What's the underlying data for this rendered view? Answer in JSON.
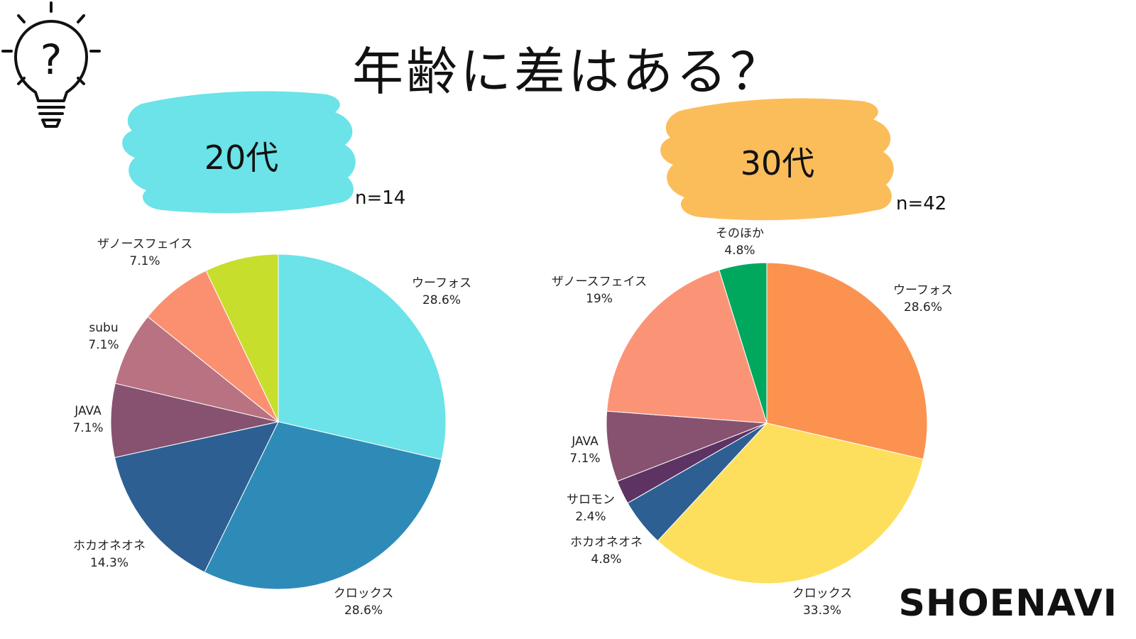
{
  "title": "年齢に差はある？",
  "brand": "SHOENAVI",
  "icons": {
    "header": "lightbulb-question-icon"
  },
  "chart_data": [
    {
      "type": "pie",
      "title": "20代",
      "n_label": "n=14",
      "badge_color": "#6be3e8",
      "slices": [
        {
          "label": "ウーフォス",
          "pct_label": "28.6%",
          "value": 28.6,
          "color": "#6be3e8"
        },
        {
          "label": "クロックス",
          "pct_label": "28.6%",
          "value": 28.6,
          "color": "#2e8bb8"
        },
        {
          "label": "ホカオネオネ",
          "pct_label": "14.3%",
          "value": 14.3,
          "color": "#2d5f93"
        },
        {
          "label": "JAVA",
          "pct_label": "7.1%",
          "value": 7.1,
          "color": "#86526f"
        },
        {
          "label": "subu",
          "pct_label": "7.1%",
          "value": 7.1,
          "color": "#b97282"
        },
        {
          "label": "ザノースフェイス",
          "pct_label": "7.1%",
          "value": 7.1,
          "color": "#fb9070"
        },
        {
          "label": "",
          "pct_label": "",
          "value": 7.1,
          "color": "#c7de2c"
        }
      ]
    },
    {
      "type": "pie",
      "title": "30代",
      "n_label": "n=42",
      "badge_color": "#fbbd5a",
      "slices": [
        {
          "label": "ウーフォス",
          "pct_label": "28.6%",
          "value": 28.6,
          "color": "#fc924f"
        },
        {
          "label": "クロックス",
          "pct_label": "33.3%",
          "value": 33.3,
          "color": "#fedf5d"
        },
        {
          "label": "ホカオネオネ",
          "pct_label": "4.8%",
          "value": 4.8,
          "color": "#2d5f93"
        },
        {
          "label": "サロモン",
          "pct_label": "2.4%",
          "value": 2.4,
          "color": "#5c3363"
        },
        {
          "label": "JAVA",
          "pct_label": "7.1%",
          "value": 7.1,
          "color": "#86526f"
        },
        {
          "label": "ザノースフェイス",
          "pct_label": "19%",
          "value": 19.0,
          "color": "#fb9477"
        },
        {
          "label": "そのほか",
          "pct_label": "4.8%",
          "value": 4.8,
          "color": "#00a85d"
        }
      ]
    }
  ]
}
